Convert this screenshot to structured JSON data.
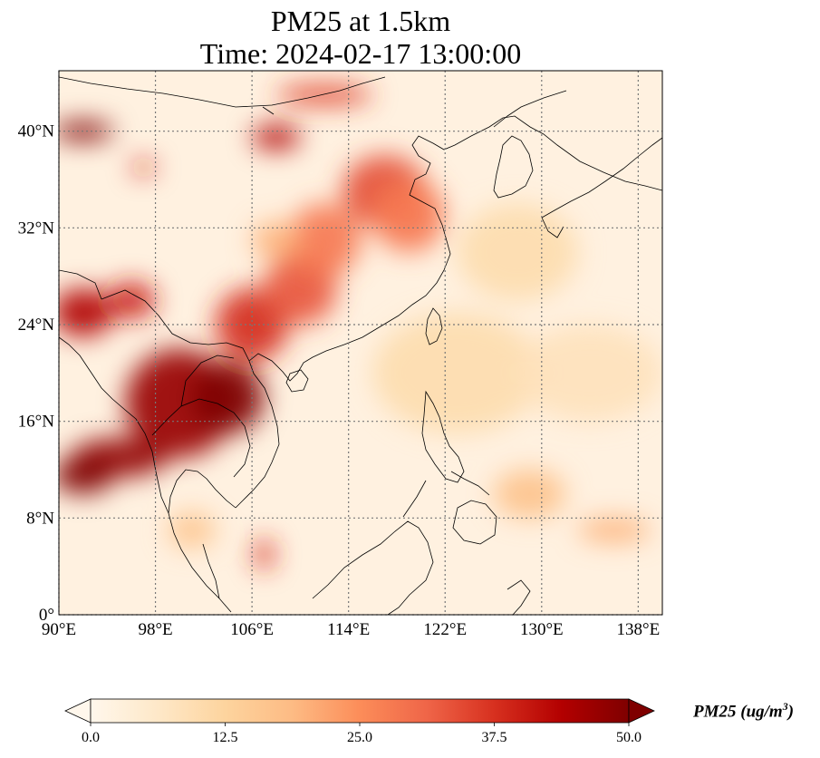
{
  "title": {
    "line1": "PM25 at 1.5km",
    "line2": "Time: 2024-02-17 13:00:00"
  },
  "map": {
    "lon_range": [
      90,
      140
    ],
    "lat_range": [
      0,
      45
    ],
    "lon_ticks": [
      {
        "value": 90,
        "label": "90°E"
      },
      {
        "value": 98,
        "label": "98°E"
      },
      {
        "value": 106,
        "label": "106°E"
      },
      {
        "value": 114,
        "label": "114°E"
      },
      {
        "value": 122,
        "label": "122°E"
      },
      {
        "value": 130,
        "label": "130°E"
      },
      {
        "value": 138,
        "label": "138°E"
      }
    ],
    "lat_ticks": [
      {
        "value": 0,
        "label": "0°"
      },
      {
        "value": 8,
        "label": "8°N"
      },
      {
        "value": 16,
        "label": "16°N"
      },
      {
        "value": 24,
        "label": "24°N"
      },
      {
        "value": 32,
        "label": "32°N"
      },
      {
        "value": 40,
        "label": "40°N"
      }
    ],
    "gridlines": "dotted",
    "coastlines": true,
    "colormap": "OrRd"
  },
  "colorbar": {
    "label_main": "PM25 (ug/m",
    "label_sup": "3",
    "label_end": ")",
    "min": 0,
    "max": 50,
    "extend": "both",
    "ticks": [
      {
        "value": 0,
        "label": "0.0"
      },
      {
        "value": 12.5,
        "label": "12.5"
      },
      {
        "value": 25,
        "label": "25.0"
      },
      {
        "value": 37.5,
        "label": "37.5"
      },
      {
        "value": 50,
        "label": "50.0"
      }
    ],
    "colors": [
      "#fff7ec",
      "#fee8c8",
      "#fdd49e",
      "#fdbb84",
      "#fc8d59",
      "#ef6548",
      "#d7301f",
      "#b30000",
      "#7f0000"
    ]
  },
  "plumes": [
    {
      "lon": 100,
      "lat": 17.5,
      "rx": 4.5,
      "ry": 4.5,
      "value": 47
    },
    {
      "lon": 104,
      "lat": 18,
      "rx": 3,
      "ry": 3,
      "value": 50
    },
    {
      "lon": 95,
      "lat": 13,
      "rx": 4,
      "ry": 1.6,
      "value": 48
    },
    {
      "lon": 92,
      "lat": 11.5,
      "rx": 2.5,
      "ry": 1.5,
      "value": 50
    },
    {
      "lon": 92,
      "lat": 25,
      "rx": 2.5,
      "ry": 2,
      "value": 44
    },
    {
      "lon": 96,
      "lat": 26,
      "rx": 2,
      "ry": 1.5,
      "value": 40
    },
    {
      "lon": 106,
      "lat": 24,
      "rx": 3,
      "ry": 3,
      "value": 38
    },
    {
      "lon": 110,
      "lat": 27,
      "rx": 3,
      "ry": 3,
      "value": 33
    },
    {
      "lon": 112,
      "lat": 31,
      "rx": 3,
      "ry": 3,
      "value": 28
    },
    {
      "lon": 117,
      "lat": 35,
      "rx": 3.5,
      "ry": 3,
      "value": 34
    },
    {
      "lon": 119,
      "lat": 33,
      "rx": 3,
      "ry": 3,
      "value": 28
    },
    {
      "lon": 108,
      "lat": 39.5,
      "rx": 2,
      "ry": 1,
      "value": 44
    },
    {
      "lon": 112,
      "lat": 43,
      "rx": 4,
      "ry": 0.8,
      "value": 36
    },
    {
      "lon": 92,
      "lat": 40,
      "rx": 2.5,
      "ry": 0.8,
      "value": 50
    },
    {
      "lon": 97,
      "lat": 37,
      "rx": 1,
      "ry": 0.5,
      "value": 40
    },
    {
      "lon": 107,
      "lat": 5,
      "rx": 0.8,
      "ry": 1.2,
      "value": 38
    },
    {
      "lon": 101,
      "lat": 7,
      "rx": 2,
      "ry": 1.5,
      "value": 16
    },
    {
      "lon": 108,
      "lat": 31,
      "rx": 2,
      "ry": 1.5,
      "value": 20
    },
    {
      "lon": 129,
      "lat": 10,
      "rx": 3,
      "ry": 2,
      "value": 17
    },
    {
      "lon": 136,
      "lat": 7,
      "rx": 3,
      "ry": 1,
      "value": 20
    },
    {
      "lon": 123,
      "lat": 20,
      "rx": 7,
      "ry": 5,
      "value": 10
    },
    {
      "lon": 128,
      "lat": 30,
      "rx": 5,
      "ry": 4,
      "value": 10
    },
    {
      "lon": 134,
      "lat": 20,
      "rx": 6,
      "ry": 4,
      "value": 8
    }
  ]
}
